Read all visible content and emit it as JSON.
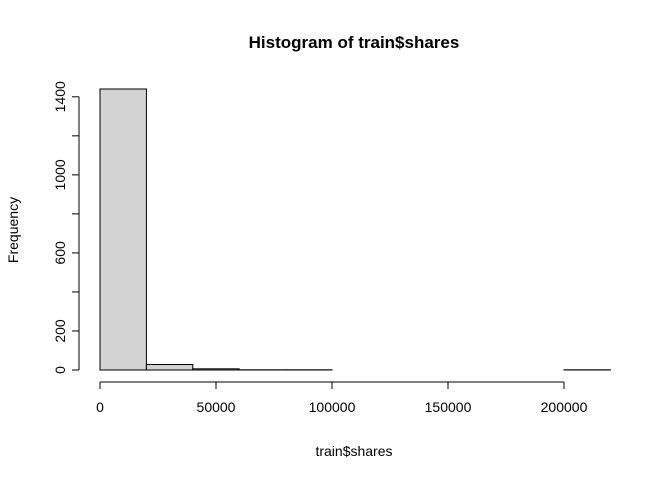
{
  "chart_data": {
    "type": "bar",
    "title": "Histogram of train$shares",
    "xlabel": "train$shares",
    "ylabel": "Frequency",
    "bin_edges": [
      0,
      20000,
      40000,
      60000,
      80000,
      100000,
      120000,
      140000,
      160000,
      180000,
      200000,
      220000
    ],
    "values": [
      1440,
      28,
      6,
      1,
      1,
      0,
      0,
      0,
      0,
      0,
      1
    ],
    "xlim": [
      0,
      220000
    ],
    "ylim": [
      0,
      1440
    ],
    "x_ticks": [
      0,
      50000,
      100000,
      150000,
      200000
    ],
    "x_tick_labels": [
      "0",
      "50000",
      "100000",
      "150000",
      "200000"
    ],
    "y_ticks": [
      0,
      200,
      400,
      600,
      800,
      1000,
      1200,
      1400
    ],
    "y_tick_labels": [
      "0",
      "200",
      "",
      "600",
      "",
      "1000",
      "",
      "1400"
    ],
    "bar_color": "#d3d3d3",
    "grid": false
  }
}
